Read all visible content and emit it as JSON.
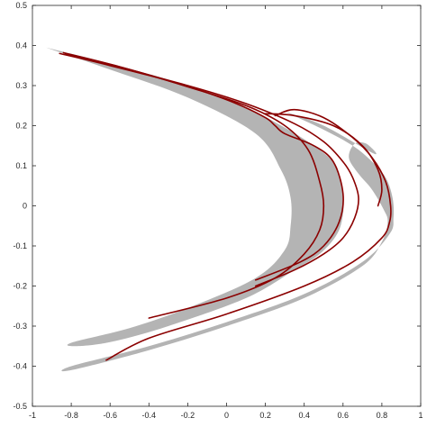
{
  "chart_data": {
    "type": "area",
    "title": "",
    "xlabel": "",
    "ylabel": "",
    "xlim": [
      -1,
      1
    ],
    "ylim": [
      -0.5,
      0.5
    ],
    "grid": false,
    "legend": "none",
    "x_ticks": [
      -1,
      -0.8,
      -0.6,
      -0.4,
      -0.2,
      0,
      0.2,
      0.4,
      0.6,
      0.8,
      1
    ],
    "x_tick_labels": [
      "-1",
      "-0.8",
      "-0.6",
      "-0.4",
      "-0.2",
      "0",
      "0.2",
      "0.4",
      "0.6",
      "0.8",
      "1"
    ],
    "y_ticks": [
      -0.5,
      -0.4,
      -0.3,
      -0.2,
      -0.1,
      0,
      0.1,
      0.2,
      0.3,
      0.4,
      0.5
    ],
    "y_tick_labels": [
      "-0.5",
      "-0.4",
      "-0.3",
      "-0.2",
      "-0.1",
      "0",
      "0.1",
      "0.2",
      "0.3",
      "0.4",
      "0.5"
    ],
    "colors": {
      "band_fill": "#b4b4b4",
      "curve": "#8b0000",
      "axis": "#262626"
    },
    "bands": [
      {
        "outer": [
          [
            -0.93,
            0.395
          ],
          [
            -0.6,
            0.355
          ],
          [
            -0.2,
            0.3
          ],
          [
            0.1,
            0.245
          ],
          [
            0.3,
            0.195
          ],
          [
            0.45,
            0.15
          ],
          [
            0.55,
            0.11
          ],
          [
            0.58,
            0.08
          ],
          [
            0.6,
            0.03
          ],
          [
            0.6,
            -0.02
          ],
          [
            0.57,
            -0.07
          ],
          [
            0.48,
            -0.12
          ],
          [
            0.35,
            -0.16
          ],
          [
            0.1,
            -0.23
          ],
          [
            -0.3,
            -0.3
          ],
          [
            -0.6,
            -0.34
          ],
          [
            -0.79,
            -0.35
          ]
        ],
        "inner": [
          [
            -0.79,
            -0.34
          ],
          [
            -0.5,
            -0.305
          ],
          [
            -0.2,
            -0.255
          ],
          [
            0.15,
            -0.18
          ],
          [
            0.3,
            -0.11
          ],
          [
            0.33,
            -0.05
          ],
          [
            0.33,
            0.02
          ],
          [
            0.28,
            0.09
          ],
          [
            0.15,
            0.18
          ],
          [
            -0.2,
            0.27
          ],
          [
            -0.6,
            0.34
          ],
          [
            -0.93,
            0.395
          ]
        ]
      },
      {
        "outer": [
          [
            0.3,
            0.235
          ],
          [
            0.5,
            0.19
          ],
          [
            0.65,
            0.15
          ],
          [
            0.75,
            0.11
          ],
          [
            0.82,
            0.07
          ],
          [
            0.855,
            0.02
          ],
          [
            0.86,
            -0.03
          ],
          [
            0.84,
            -0.07
          ],
          [
            0.7,
            -0.14
          ],
          [
            0.4,
            -0.22
          ],
          [
            0.0,
            -0.29
          ],
          [
            -0.4,
            -0.35
          ],
          [
            -0.8,
            -0.4
          ]
        ],
        "inner": [
          [
            -0.8,
            -0.41
          ],
          [
            -0.4,
            -0.36
          ],
          [
            0.0,
            -0.3
          ],
          [
            0.4,
            -0.23
          ],
          [
            0.7,
            -0.15
          ],
          [
            0.8,
            -0.09
          ],
          [
            0.83,
            -0.04
          ],
          [
            0.81,
            -0.01
          ],
          [
            0.75,
            0.04
          ],
          [
            0.68,
            0.08
          ],
          [
            0.63,
            0.12
          ],
          [
            0.66,
            0.155
          ],
          [
            0.72,
            0.155
          ],
          [
            0.76,
            0.13
          ],
          [
            0.5,
            0.2
          ],
          [
            0.3,
            0.235
          ]
        ]
      }
    ],
    "curves": [
      [
        [
          -0.86,
          0.38
        ],
        [
          -0.6,
          0.35
        ],
        [
          -0.2,
          0.3
        ],
        [
          0.1,
          0.255
        ],
        [
          0.35,
          0.205
        ],
        [
          0.5,
          0.16
        ],
        [
          0.6,
          0.11
        ],
        [
          0.65,
          0.07
        ],
        [
          0.68,
          0.02
        ],
        [
          0.66,
          -0.03
        ],
        [
          0.6,
          -0.08
        ],
        [
          0.5,
          -0.12
        ],
        [
          0.35,
          -0.16
        ],
        [
          0.15,
          -0.2
        ]
      ],
      [
        [
          -0.84,
          0.382
        ],
        [
          -0.55,
          0.347
        ],
        [
          -0.2,
          0.297
        ],
        [
          0.1,
          0.25
        ],
        [
          0.3,
          0.2
        ],
        [
          0.42,
          0.14
        ],
        [
          0.48,
          0.06
        ],
        [
          0.5,
          0.0
        ],
        [
          0.48,
          -0.06
        ],
        [
          0.4,
          -0.12
        ],
        [
          0.25,
          -0.18
        ],
        [
          0.0,
          -0.23
        ],
        [
          -0.4,
          -0.28
        ]
      ],
      [
        [
          -0.83,
          0.38
        ],
        [
          -0.5,
          0.34
        ],
        [
          -0.15,
          0.29
        ],
        [
          0.05,
          0.255
        ],
        [
          0.2,
          0.22
        ],
        [
          0.25,
          0.2
        ],
        [
          0.3,
          0.18
        ],
        [
          0.45,
          0.15
        ],
        [
          0.55,
          0.11
        ],
        [
          0.6,
          0.03
        ],
        [
          0.58,
          -0.04
        ],
        [
          0.5,
          -0.1
        ],
        [
          0.38,
          -0.14
        ],
        [
          0.15,
          -0.185
        ]
      ],
      [
        [
          0.25,
          0.225
        ],
        [
          0.35,
          0.24
        ],
        [
          0.5,
          0.22
        ],
        [
          0.65,
          0.17
        ],
        [
          0.75,
          0.12
        ],
        [
          0.82,
          0.06
        ],
        [
          0.845,
          0.0
        ],
        [
          0.84,
          -0.04
        ],
        [
          0.8,
          -0.08
        ],
        [
          0.65,
          -0.14
        ],
        [
          0.4,
          -0.2
        ],
        [
          0.0,
          -0.27
        ],
        [
          -0.4,
          -0.33
        ],
        [
          -0.62,
          -0.385
        ]
      ],
      [
        [
          0.2,
          0.23
        ],
        [
          0.35,
          0.225
        ],
        [
          0.55,
          0.2
        ],
        [
          0.7,
          0.15
        ],
        [
          0.78,
          0.09
        ],
        [
          0.8,
          0.04
        ],
        [
          0.78,
          0.0
        ]
      ]
    ]
  }
}
